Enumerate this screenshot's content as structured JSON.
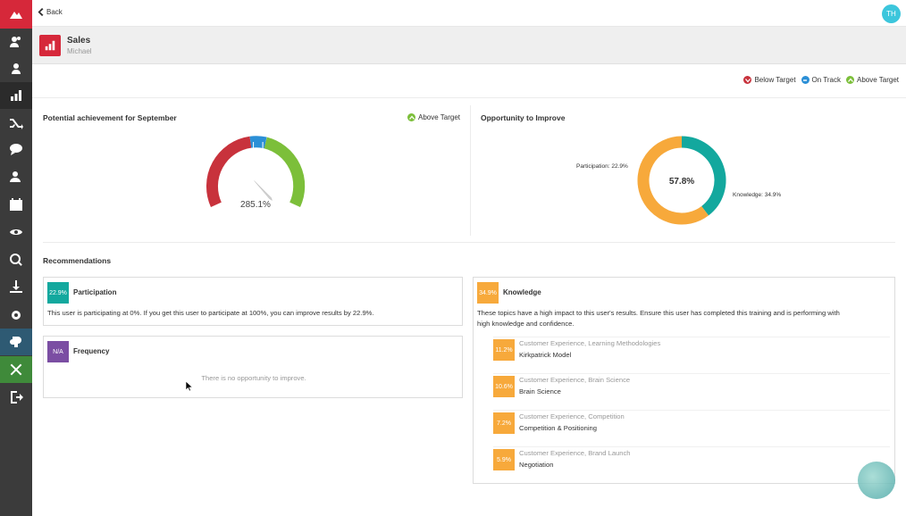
{
  "topbar": {
    "back_label": "Back",
    "avatar_initials": "TH"
  },
  "header": {
    "title": "Sales",
    "subtitle": "Michael"
  },
  "legend": {
    "items": [
      {
        "label": "Below Target",
        "color": "#c8323c",
        "icon": "chevron-down-icon"
      },
      {
        "label": "On Track",
        "color": "#2b8fd6",
        "icon": "minus-icon"
      },
      {
        "label": "Above Target",
        "color": "#7cbf3a",
        "icon": "chevron-up-icon"
      }
    ]
  },
  "achievement": {
    "title": "Potential achievement for September",
    "status": "Above Target",
    "value_label": "285.1%",
    "gauge": {
      "min": 0,
      "max": 100,
      "value": 285.1,
      "segments": [
        {
          "label": "Below Target",
          "color": "#c8323c"
        },
        {
          "label": "On Track",
          "color": "#2b8fd6"
        },
        {
          "label": "Above Target",
          "color": "#7cbf3a"
        }
      ]
    }
  },
  "opportunity": {
    "title": "Opportunity to Improve",
    "center_label": "57.8%",
    "chart_data": {
      "type": "pie",
      "title": "Opportunity to Improve",
      "slices": [
        {
          "label": "Participation",
          "value": 22.9,
          "color": "#13a89e"
        },
        {
          "label": "Knowledge",
          "value": 34.9,
          "color": "#f7a93b"
        }
      ],
      "total": 57.8
    },
    "labels": {
      "participation": "Participation: 22.9%",
      "knowledge": "Knowledge: 34.9%"
    }
  },
  "recommendations": {
    "title": "Recommendations",
    "participation": {
      "badge": "22.9%",
      "color": "#13a89e",
      "title": "Participation",
      "text": "This user is participating at 0%. If you get this user to participate at 100%, you can improve results by 22.9%."
    },
    "frequency": {
      "badge": "N/A",
      "color": "#7b4ea3",
      "title": "Frequency",
      "text": "There is no opportunity to improve."
    },
    "knowledge": {
      "badge": "34.9%",
      "color": "#f7a93b",
      "title": "Knowledge",
      "text_line1": "These topics have a high impact to this user's results. Ensure this user has completed this training and is performing with",
      "text_line2": "high knowledge and confidence.",
      "topics": [
        {
          "badge": "11.2%",
          "category": "Customer Experience, Learning Methodologies",
          "name": "Kirkpatrick Model"
        },
        {
          "badge": "10.6%",
          "category": "Customer Experience, Brain Science",
          "name": "Brain Science"
        },
        {
          "badge": "7.2%",
          "category": "Customer Experience, Competition",
          "name": "Competition & Positioning"
        },
        {
          "badge": "5.9%",
          "category": "Customer Experience, Brand Launch",
          "name": "Negotiation"
        }
      ]
    }
  }
}
